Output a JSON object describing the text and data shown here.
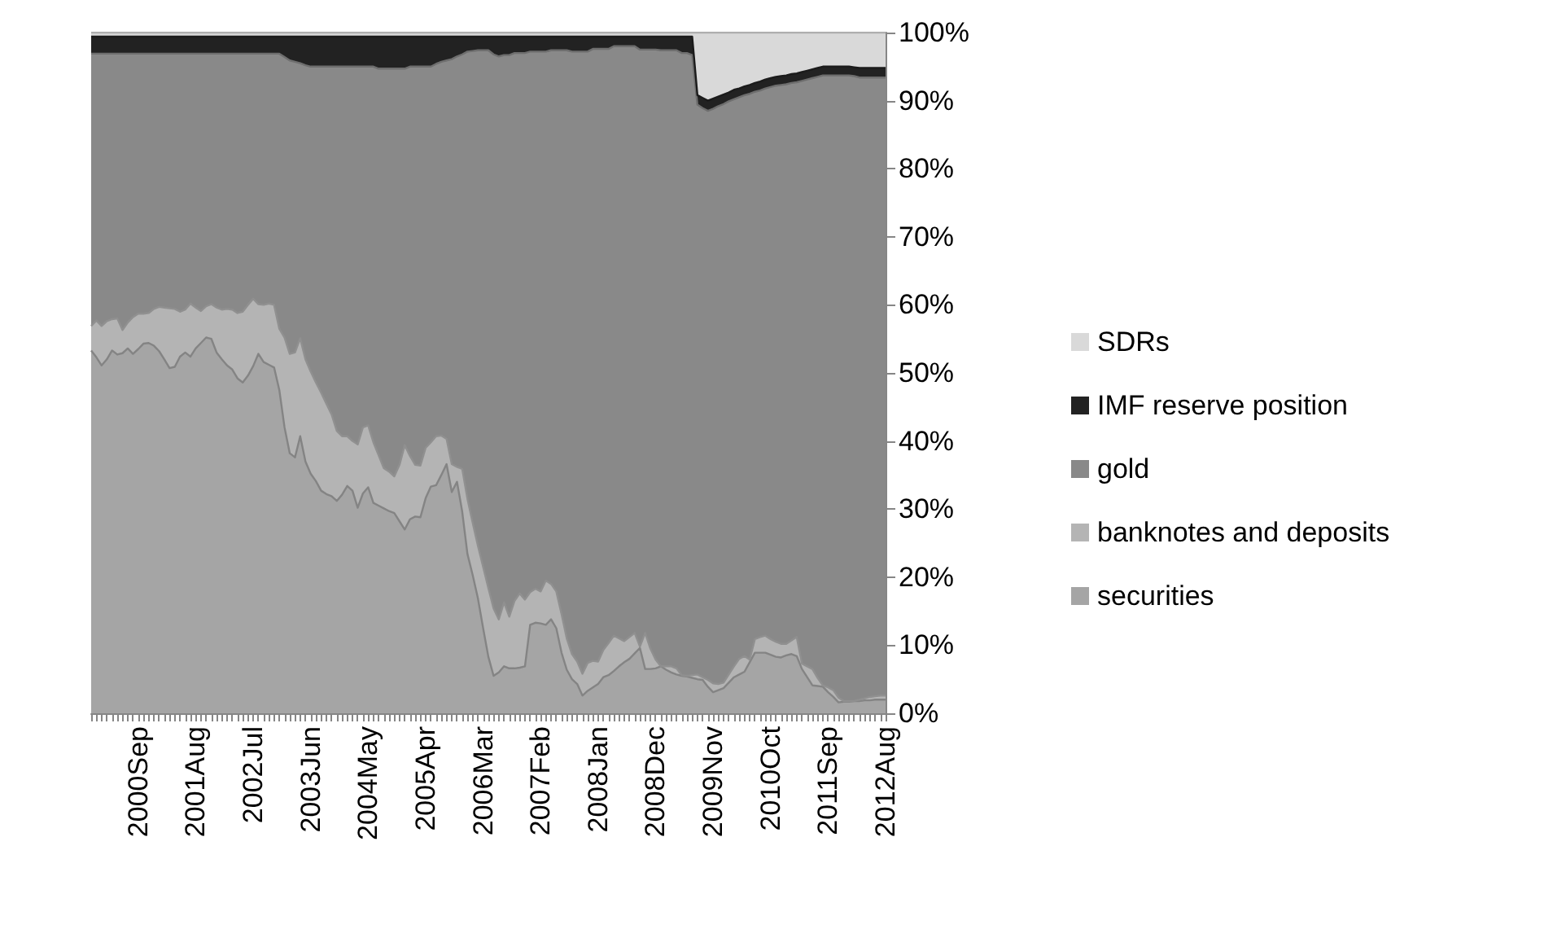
{
  "chart_data": {
    "type": "area",
    "stacked": true,
    "legend": "right",
    "categories": [
      null,
      null,
      null,
      null,
      null,
      null,
      null,
      null,
      null,
      "2000Sep",
      null,
      null,
      null,
      null,
      null,
      null,
      null,
      null,
      null,
      null,
      "2001Aug",
      null,
      null,
      null,
      null,
      null,
      null,
      null,
      null,
      null,
      null,
      "2002Jul",
      null,
      null,
      null,
      null,
      null,
      null,
      null,
      null,
      null,
      null,
      "2003Jun",
      null,
      null,
      null,
      null,
      null,
      null,
      null,
      null,
      null,
      null,
      "2004May",
      null,
      null,
      null,
      null,
      null,
      null,
      null,
      null,
      null,
      null,
      "2005Apr",
      null,
      null,
      null,
      null,
      null,
      null,
      null,
      null,
      null,
      null,
      "2006Mar",
      null,
      null,
      null,
      null,
      null,
      null,
      null,
      null,
      null,
      null,
      "2007Feb",
      null,
      null,
      null,
      null,
      null,
      null,
      null,
      null,
      null,
      null,
      "2008Jan",
      null,
      null,
      null,
      null,
      null,
      null,
      null,
      null,
      null,
      null,
      "2008Dec",
      null,
      null,
      null,
      null,
      null,
      null,
      null,
      null,
      null,
      null,
      "2009Nov",
      null,
      null,
      null,
      null,
      null,
      null,
      null,
      null,
      null,
      null,
      "2010Oct",
      null,
      null,
      null,
      null,
      null,
      null,
      null,
      null,
      null,
      null,
      "2011Sep",
      null,
      null,
      null,
      null,
      null,
      null,
      null,
      null,
      null,
      null,
      "2012Aug"
    ],
    "ylim": [
      0,
      100
    ],
    "yticks": [
      {
        "value": 0,
        "label": "0%"
      },
      {
        "value": 10,
        "label": "10%"
      },
      {
        "value": 20,
        "label": "20%"
      },
      {
        "value": 30,
        "label": "30%"
      },
      {
        "value": 40,
        "label": "40%"
      },
      {
        "value": 50,
        "label": "50%"
      },
      {
        "value": 60,
        "label": "60%"
      },
      {
        "value": 70,
        "label": "70%"
      },
      {
        "value": 80,
        "label": "80%"
      },
      {
        "value": 90,
        "label": "90%"
      },
      {
        "value": 100,
        "label": "100%"
      }
    ],
    "series": [
      {
        "name": "securities",
        "color": "#a5a5a5",
        "values": [
          53.3,
          52.3,
          51.1,
          52.0,
          53.3,
          52.7,
          52.9,
          53.6,
          52.8,
          53.5,
          54.3,
          54.4,
          54.0,
          53.2,
          52.0,
          50.7,
          50.9,
          52.4,
          53.0,
          52.4,
          53.6,
          54.4,
          55.2,
          55.0,
          53.0,
          52.0,
          51.1,
          50.5,
          49.2,
          48.6,
          49.6,
          51.0,
          52.8,
          51.6,
          51.2,
          50.8,
          47.5,
          42.0,
          38.2,
          37.6,
          40.7,
          37.0,
          35.2,
          34.1,
          32.7,
          32.2,
          31.9,
          31.2,
          32.1,
          33.4,
          32.7,
          30.2,
          32.3,
          33.2,
          30.9,
          30.5,
          30.1,
          29.7,
          29.4,
          28.2,
          27.0,
          28.5,
          28.9,
          28.8,
          31.6,
          33.3,
          33.5,
          35.0,
          36.6,
          32.5,
          34.0,
          29.6,
          23.4,
          20.3,
          16.9,
          12.5,
          8.3,
          5.5,
          6.0,
          6.9,
          6.6,
          6.6,
          6.7,
          6.9,
          13.0,
          13.3,
          13.2,
          13.0,
          13.8,
          12.5,
          8.9,
          6.4,
          5.0,
          4.3,
          2.6,
          3.3,
          3.8,
          4.3,
          5.3,
          5.6,
          6.2,
          6.9,
          7.5,
          8.0,
          8.8,
          9.6,
          6.5,
          6.5,
          6.6,
          6.9,
          6.4,
          6.0,
          5.7,
          5.5,
          5.4,
          5.2,
          5.0,
          4.9,
          3.9,
          3.1,
          3.4,
          3.7,
          4.5,
          5.3,
          5.7,
          6.1,
          7.5,
          8.9,
          8.9,
          8.9,
          8.6,
          8.3,
          8.2,
          8.5,
          8.7,
          8.4,
          6.5,
          5.3,
          4.1,
          4.0,
          3.9,
          3.1,
          2.4,
          1.6,
          1.7,
          1.7,
          1.8,
          1.8,
          1.9,
          1.9,
          2.0,
          2.0,
          2.0
        ]
      },
      {
        "name": "banknotes and deposits",
        "color": "#b4b4b4",
        "values": [
          3.6,
          5.4,
          5.8,
          5.6,
          4.6,
          5.3,
          3.4,
          3.8,
          5.4,
          5.2,
          4.4,
          4.4,
          5.4,
          6.5,
          7.6,
          8.8,
          8.5,
          6.6,
          6.3,
          7.8,
          6.0,
          4.7,
          4.6,
          5.1,
          6.6,
          7.3,
          8.3,
          8.8,
          9.6,
          10.4,
          10.4,
          9.9,
          7.3,
          8.4,
          9.0,
          9.2,
          9.0,
          13.2,
          14.6,
          15.4,
          14.4,
          15.0,
          15.0,
          14.5,
          14.4,
          13.3,
          12.0,
          10.3,
          8.6,
          7.3,
          7.3,
          9.3,
          9.7,
          9.1,
          8.9,
          7.4,
          5.9,
          5.8,
          5.4,
          8.3,
          12.4,
          9.3,
          7.6,
          7.6,
          7.4,
          6.5,
          7.2,
          5.8,
          3.7,
          4.1,
          2.2,
          6.3,
          8.1,
          7.7,
          7.7,
          9.0,
          10.1,
          9.9,
          7.8,
          9.4,
          7.6,
          9.9,
          10.9,
          9.8,
          4.8,
          5.0,
          4.7,
          6.5,
          5.2,
          5.4,
          5.7,
          4.6,
          3.7,
          3.3,
          3.2,
          4.1,
          3.9,
          3.3,
          4.0,
          4.7,
          5.2,
          4.1,
          3.1,
          3.2,
          3.0,
          0.2,
          5.3,
          3.0,
          1.3,
          0.0,
          0.5,
          0.9,
          0.9,
          0.1,
          0.1,
          0.4,
          0.7,
          0.4,
          1.0,
          1.3,
          0.9,
          0.8,
          1.2,
          1.6,
          2.3,
          2.3,
          0.4,
          2.0,
          2.3,
          2.5,
          2.3,
          2.2,
          2.0,
          1.7,
          2.0,
          2.8,
          0.8,
          1.6,
          2.4,
          1.2,
          0.2,
          0.7,
          1.0,
          0.7,
          0.1,
          0.1,
          0.0,
          0.2,
          0.3,
          0.5,
          0.5,
          0.6,
          0.6
        ]
      },
      {
        "name": "gold",
        "color": "#898989",
        "values": [
          40.0,
          39.2,
          40.0,
          39.3,
          39.0,
          38.9,
          40.6,
          39.5,
          38.7,
          38.2,
          38.2,
          38.1,
          37.5,
          37.2,
          37.3,
          37.4,
          37.5,
          37.9,
          37.6,
          36.7,
          37.3,
          37.8,
          37.1,
          36.8,
          37.3,
          37.6,
          37.5,
          37.6,
          38.1,
          37.9,
          36.9,
          36.0,
          36.8,
          36.9,
          36.7,
          36.9,
          40.4,
          41.2,
          43.1,
          42.7,
          40.4,
          43.2,
          44.8,
          46.4,
          47.9,
          49.5,
          51.1,
          53.5,
          54.3,
          54.3,
          55.0,
          55.5,
          53.0,
          52.7,
          55.2,
          56.8,
          58.7,
          59.2,
          59.9,
          58.2,
          55.3,
          57.2,
          58.5,
          58.6,
          56.0,
          55.2,
          54.7,
          54.9,
          55.6,
          59.5,
          60.3,
          60.9,
          65.7,
          69.3,
          72.8,
          75.9,
          79.0,
          81.4,
          82.7,
          80.4,
          82.5,
          80.5,
          79.4,
          80.3,
          79.4,
          78.9,
          79.3,
          77.7,
          78.4,
          79.5,
          82.8,
          86.4,
          88.5,
          89.6,
          91.4,
          89.8,
          89.9,
          90.0,
          88.3,
          87.3,
          86.6,
          87.0,
          87.4,
          86.8,
          86.2,
          87.7,
          85.7,
          88.0,
          89.6,
          90.5,
          90.5,
          90.5,
          90.8,
          91.4,
          91.5,
          91.1,
          83.7,
          83.6,
          83.6,
          84.4,
          84.9,
          85.0,
          84.2,
          83.3,
          82.5,
          82.4,
          83.1,
          80.4,
          80.3,
          80.4,
          81.1,
          81.7,
          82.1,
          82.2,
          81.9,
          81.5,
          85.6,
          86.2,
          86.8,
          88.3,
          89.6,
          89.9,
          90.3,
          91.4,
          91.9,
          91.9,
          91.8,
          91.4,
          91.2,
          91.0,
          90.9,
          90.8,
          90.8
        ]
      },
      {
        "name": "IMF reserve position",
        "color": "#222222",
        "values": [
          2.5,
          2.5,
          2.5,
          2.5,
          2.5,
          2.5,
          2.5,
          2.5,
          2.5,
          2.5,
          2.5,
          2.5,
          2.5,
          2.5,
          2.5,
          2.5,
          2.5,
          2.5,
          2.5,
          2.5,
          2.5,
          2.5,
          2.5,
          2.5,
          2.5,
          2.5,
          2.5,
          2.5,
          2.5,
          2.5,
          2.5,
          2.5,
          2.5,
          2.5,
          2.5,
          2.5,
          2.5,
          3.0,
          3.5,
          3.7,
          3.9,
          4.2,
          4.4,
          4.4,
          4.4,
          4.4,
          4.4,
          4.4,
          4.4,
          4.4,
          4.4,
          4.4,
          4.4,
          4.4,
          4.4,
          4.7,
          4.7,
          4.7,
          4.7,
          4.7,
          4.7,
          4.4,
          4.4,
          4.4,
          4.4,
          4.4,
          4.0,
          3.7,
          3.5,
          3.3,
          2.9,
          2.6,
          2.2,
          2.1,
          2.0,
          2.0,
          2.0,
          2.6,
          2.9,
          2.7,
          2.7,
          2.4,
          2.4,
          2.4,
          2.2,
          2.2,
          2.2,
          2.2,
          2.0,
          2.0,
          2.0,
          2.0,
          2.2,
          2.2,
          2.2,
          2.2,
          1.8,
          1.8,
          1.8,
          1.8,
          1.4,
          1.4,
          1.4,
          1.4,
          1.4,
          1.9,
          1.9,
          1.9,
          1.9,
          2.0,
          2.0,
          2.0,
          2.0,
          2.4,
          2.4,
          2.7,
          1.4,
          1.5,
          1.5,
          1.5,
          1.4,
          1.4,
          1.3,
          1.4,
          1.3,
          1.3,
          1.3,
          1.3,
          1.3,
          1.3,
          1.3,
          1.3,
          1.3,
          1.3,
          1.3,
          1.3,
          1.3,
          1.3,
          1.3,
          1.3,
          1.3,
          1.3,
          1.3,
          1.3,
          1.3,
          1.3,
          1.3,
          1.4,
          1.4,
          1.4,
          1.4,
          1.4,
          1.4
        ]
      },
      {
        "name": "SDRs",
        "color": "#d9d9d9",
        "values": [
          0.6,
          0.6,
          0.6,
          0.6,
          0.6,
          0.6,
          0.6,
          0.6,
          0.6,
          0.6,
          0.6,
          0.6,
          0.6,
          0.6,
          0.6,
          0.6,
          0.6,
          0.6,
          0.6,
          0.6,
          0.6,
          0.6,
          0.6,
          0.6,
          0.6,
          0.6,
          0.6,
          0.6,
          0.6,
          0.6,
          0.6,
          0.6,
          0.6,
          0.6,
          0.6,
          0.6,
          0.6,
          0.6,
          0.6,
          0.6,
          0.6,
          0.6,
          0.6,
          0.6,
          0.6,
          0.6,
          0.6,
          0.6,
          0.6,
          0.6,
          0.6,
          0.6,
          0.6,
          0.6,
          0.6,
          0.6,
          0.6,
          0.6,
          0.6,
          0.6,
          0.6,
          0.6,
          0.6,
          0.6,
          0.6,
          0.6,
          0.6,
          0.6,
          0.6,
          0.6,
          0.6,
          0.6,
          0.6,
          0.6,
          0.6,
          0.6,
          0.6,
          0.6,
          0.6,
          0.6,
          0.6,
          0.6,
          0.6,
          0.6,
          0.6,
          0.6,
          0.6,
          0.6,
          0.6,
          0.6,
          0.6,
          0.6,
          0.6,
          0.6,
          0.6,
          0.6,
          0.6,
          0.6,
          0.6,
          0.6,
          0.6,
          0.6,
          0.6,
          0.6,
          0.6,
          0.6,
          0.6,
          0.6,
          0.6,
          0.6,
          0.6,
          0.6,
          0.6,
          0.6,
          0.6,
          0.6,
          9.2,
          9.6,
          10.0,
          9.7,
          9.4,
          9.1,
          8.8,
          8.4,
          8.2,
          7.9,
          7.7,
          7.4,
          7.2,
          6.9,
          6.7,
          6.5,
          6.4,
          6.3,
          6.1,
          6.0,
          5.8,
          5.6,
          5.4,
          5.2,
          5.0,
          5.0,
          5.0,
          5.0,
          5.0,
          5.0,
          5.1,
          5.2,
          5.2,
          5.2,
          5.2,
          5.2,
          5.2
        ]
      }
    ]
  }
}
